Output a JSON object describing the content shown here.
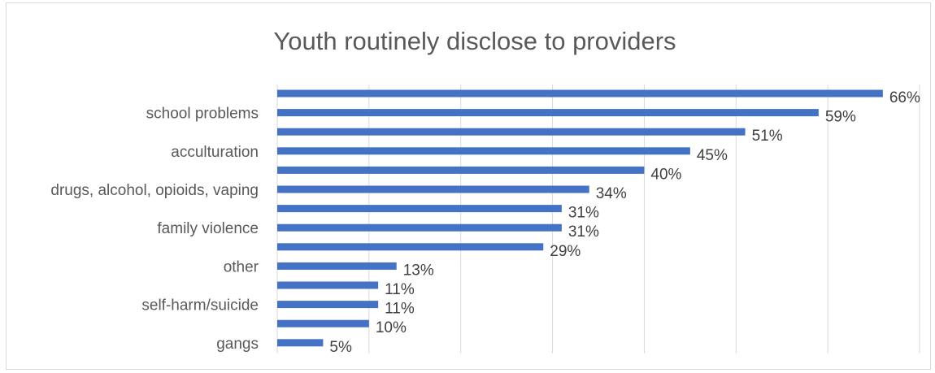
{
  "chart_data": {
    "type": "bar",
    "orientation": "horizontal",
    "title": "Youth routinely disclose to providers",
    "xlabel": "",
    "ylabel": "",
    "xlim": [
      0,
      70
    ],
    "grid": true,
    "legend": "none",
    "bar_color": "#4472c4",
    "categories": [
      "",
      "school problems",
      "",
      "acculturation",
      "",
      "drugs, alcohol, opioids, vaping",
      "",
      "family violence",
      "",
      "other",
      "",
      "self-harm/suicide",
      "",
      "gangs"
    ],
    "values": [
      66,
      59,
      51,
      45,
      40,
      34,
      31,
      31,
      29,
      13,
      11,
      11,
      10,
      5
    ],
    "data_labels": [
      "66%",
      "59%",
      "51%",
      "45%",
      "40%",
      "34%",
      "31%",
      "31%",
      "29%",
      "13%",
      "11%",
      "11%",
      "10%",
      "5%"
    ]
  }
}
